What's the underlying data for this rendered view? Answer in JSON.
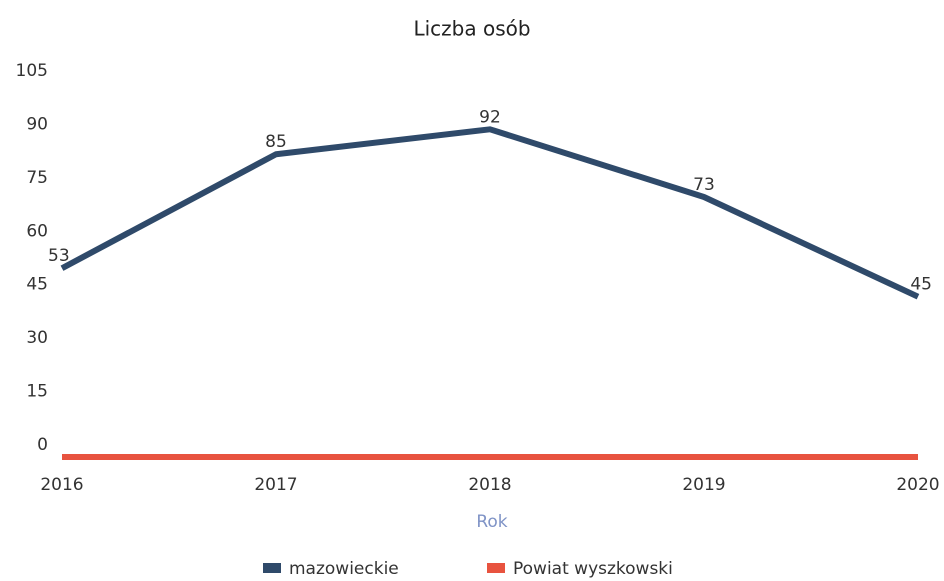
{
  "chart_data": {
    "type": "line",
    "title": "Liczba osób",
    "x_label": "Rok",
    "categories": [
      "2016",
      "2017",
      "2018",
      "2019",
      "2020"
    ],
    "series": [
      {
        "name": "mazowieckie",
        "color": "#2f4a6a",
        "values": [
          53,
          85,
          92,
          73,
          45
        ],
        "show_labels": true
      },
      {
        "name": "Powiat wyszkowski",
        "color": "#e8533f",
        "values": [
          0,
          0,
          0,
          0,
          0
        ],
        "show_labels": false
      }
    ],
    "ylim": [
      0,
      105
    ],
    "yticks": [
      0,
      15,
      30,
      45,
      60,
      75,
      90,
      105
    ],
    "grid": false
  }
}
